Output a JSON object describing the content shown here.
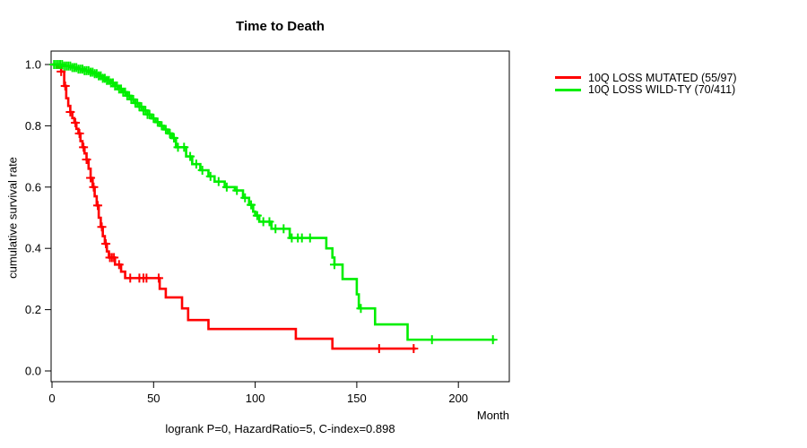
{
  "chart_data": {
    "type": "line",
    "subtype": "kaplan-meier-step-curves",
    "title": "Time to Death",
    "xlabel": "Month",
    "ylabel": "cumulative survival rate",
    "caption": "logrank P=0, HazardRatio=5, C-index=0.898",
    "xlim": [
      0,
      225
    ],
    "ylim": [
      0,
      1.04
    ],
    "xticks": [
      0,
      50,
      100,
      150,
      200
    ],
    "yticks": [
      "0.0",
      "0.2",
      "0.4",
      "0.6",
      "0.8",
      "1.0"
    ],
    "grid": false,
    "legend_position": "right-outside",
    "axis_color": "#000000",
    "series": [
      {
        "name": "10Q LOSS MUTATED (55/97)",
        "events_over_n": "55/97",
        "color": "#ff0000",
        "steps": [
          [
            0,
            1.0
          ],
          [
            3,
            0.99
          ],
          [
            4.5,
            0.977
          ],
          [
            6,
            0.93
          ],
          [
            7,
            0.89
          ],
          [
            8,
            0.865
          ],
          [
            9,
            0.845
          ],
          [
            10,
            0.825
          ],
          [
            11,
            0.81
          ],
          [
            12,
            0.79
          ],
          [
            13,
            0.775
          ],
          [
            14,
            0.75
          ],
          [
            15,
            0.73
          ],
          [
            16,
            0.71
          ],
          [
            17,
            0.69
          ],
          [
            18,
            0.66
          ],
          [
            19,
            0.63
          ],
          [
            20,
            0.6
          ],
          [
            21,
            0.57
          ],
          [
            22,
            0.54
          ],
          [
            23,
            0.5
          ],
          [
            24,
            0.47
          ],
          [
            25,
            0.44
          ],
          [
            26,
            0.415
          ],
          [
            27,
            0.39
          ],
          [
            28,
            0.37
          ],
          [
            31,
            0.347
          ],
          [
            34,
            0.324
          ],
          [
            36,
            0.303
          ],
          [
            53,
            0.268
          ],
          [
            56,
            0.24
          ],
          [
            64,
            0.204
          ],
          [
            67,
            0.166
          ],
          [
            77,
            0.137
          ],
          [
            120,
            0.105
          ],
          [
            138,
            0.073
          ]
        ],
        "end_time": 179,
        "censor_times": [
          4.5,
          6.5,
          9,
          11.5,
          13.5,
          15.5,
          17,
          19,
          20.5,
          22.5,
          24.5,
          26.5,
          28.5,
          29.5,
          30.5,
          33,
          38.5,
          43,
          45,
          46.5,
          52.5,
          161,
          178
        ]
      },
      {
        "name": "10Q LOSS WILD-TY (70/411)",
        "events_over_n": "70/411",
        "color": "#00ee00",
        "steps": [
          [
            0,
            1.0
          ],
          [
            6,
            0.995
          ],
          [
            10,
            0.99
          ],
          [
            13,
            0.985
          ],
          [
            16,
            0.98
          ],
          [
            19,
            0.975
          ],
          [
            21,
            0.97
          ],
          [
            23,
            0.963
          ],
          [
            25,
            0.955
          ],
          [
            27,
            0.948
          ],
          [
            29,
            0.94
          ],
          [
            31,
            0.93
          ],
          [
            33,
            0.92
          ],
          [
            35,
            0.91
          ],
          [
            37,
            0.898
          ],
          [
            39,
            0.886
          ],
          [
            41,
            0.874
          ],
          [
            43,
            0.862
          ],
          [
            45,
            0.85
          ],
          [
            47,
            0.837
          ],
          [
            49,
            0.824
          ],
          [
            51,
            0.812
          ],
          [
            53,
            0.8
          ],
          [
            55,
            0.788
          ],
          [
            57,
            0.775
          ],
          [
            59,
            0.76
          ],
          [
            61,
            0.73
          ],
          [
            66,
            0.7
          ],
          [
            69,
            0.675
          ],
          [
            73,
            0.655
          ],
          [
            77,
            0.635
          ],
          [
            80,
            0.618
          ],
          [
            85,
            0.6
          ],
          [
            90,
            0.589
          ],
          [
            94,
            0.565
          ],
          [
            97,
            0.542
          ],
          [
            99,
            0.52
          ],
          [
            100,
            0.507
          ],
          [
            102,
            0.487
          ],
          [
            108,
            0.464
          ],
          [
            117,
            0.434
          ],
          [
            135,
            0.4
          ],
          [
            138,
            0.37
          ],
          [
            139,
            0.347
          ],
          [
            143,
            0.3
          ],
          [
            150,
            0.25
          ],
          [
            151,
            0.204
          ],
          [
            159,
            0.152
          ],
          [
            175,
            0.102
          ]
        ],
        "end_time": 218,
        "censor_times": [
          1,
          2,
          3,
          4,
          5,
          6,
          7,
          8,
          9,
          10,
          11,
          12,
          13,
          14,
          15,
          16,
          17,
          18,
          19,
          20,
          21,
          22,
          23,
          24,
          25,
          26,
          27,
          28,
          29,
          30,
          31,
          32,
          33,
          34,
          35,
          36,
          37,
          38,
          39,
          40,
          41,
          42,
          43,
          44,
          45,
          46,
          47,
          48,
          50,
          52,
          54,
          56,
          58,
          60,
          62,
          65,
          68,
          71,
          74,
          78,
          82,
          86,
          91,
          95,
          98,
          101,
          104,
          107,
          110,
          114,
          118,
          121,
          123,
          127,
          139,
          152,
          187,
          217
        ]
      }
    ]
  }
}
